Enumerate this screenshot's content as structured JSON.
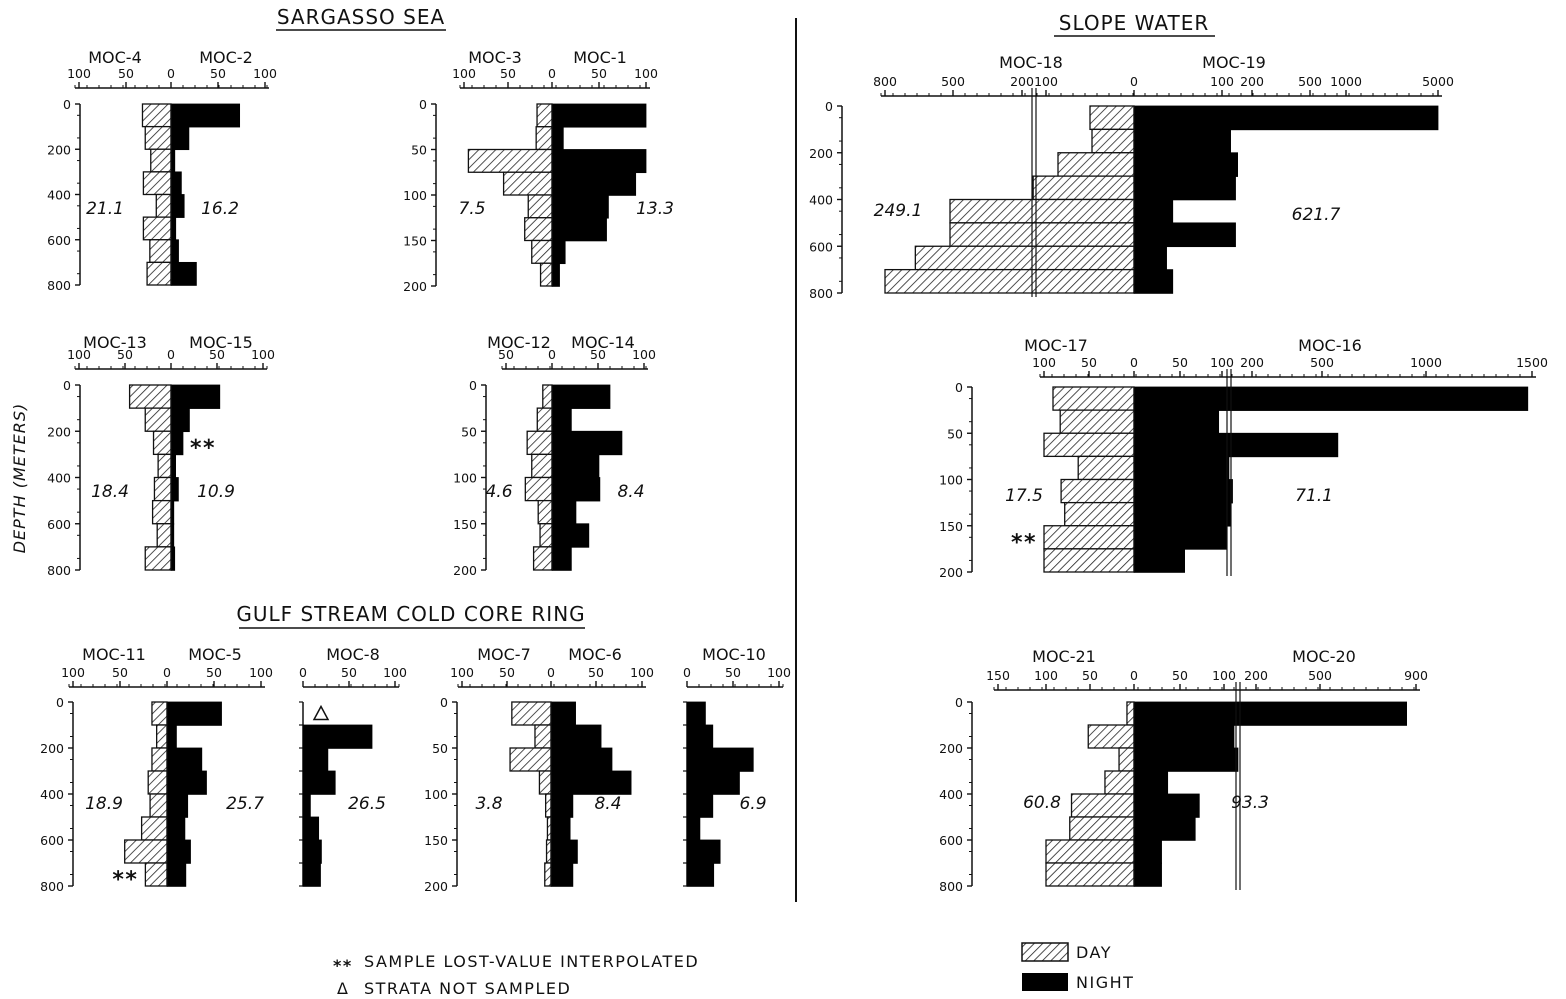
{
  "sections": {
    "sargasso": "SARGASSO SEA",
    "slope": "SLOPE WATER",
    "ring": "GULF STREAM COLD CORE RING"
  },
  "y_axis_label": "DEPTH (METERS)",
  "notes": {
    "lost": "SAMPLE LOST-VALUE INTERPOLATED",
    "lost_symbol": "**",
    "strata": "STRATA NOT SAMPLED",
    "strata_symbol": "Δ"
  },
  "legend": {
    "day": "DAY",
    "night": "NIGHT"
  },
  "colors": {
    "night": "#000000",
    "day_hatch": "#222222",
    "axis": "#111111"
  },
  "chart_data": [
    {
      "type": "bar",
      "orientation": "horizontal-paired",
      "section": "SARGASSO SEA",
      "day_label": "MOC-4",
      "night_label": "MOC-2",
      "day_ticks": [
        "100",
        "50",
        "0"
      ],
      "night_ticks": [
        "50",
        "100"
      ],
      "y_ticks": [
        "0",
        "200",
        "400",
        "600",
        "800"
      ],
      "depth_intervals": [
        "0-100",
        "100-200",
        "200-300",
        "300-400",
        "400-500",
        "500-600",
        "600-700",
        "700-800"
      ],
      "day_values": [
        31,
        28,
        22,
        30,
        16,
        30,
        23,
        26
      ],
      "night_values": [
        73,
        19,
        4,
        11,
        14,
        5,
        8,
        27
      ],
      "day_total": "21.1",
      "night_total": "16.2",
      "xlim": [
        -100,
        100
      ],
      "ylim": [
        0,
        800
      ]
    },
    {
      "type": "bar",
      "orientation": "horizontal-paired",
      "section": "SARGASSO SEA",
      "day_label": "MOC-3",
      "night_label": "MOC-1",
      "day_ticks": [
        "100",
        "50",
        "0"
      ],
      "night_ticks": [
        "50",
        "100"
      ],
      "y_ticks": [
        "0",
        "50",
        "100",
        "150",
        "200"
      ],
      "depth_intervals": [
        "0-25",
        "25-50",
        "50-75",
        "75-100",
        "100-125",
        "125-150",
        "150-175",
        "175-200"
      ],
      "day_values": [
        17,
        18,
        95,
        55,
        27,
        31,
        23,
        13
      ],
      "night_values": [
        101,
        12,
        117,
        89,
        60,
        58,
        14,
        8
      ],
      "day_total": "7.5",
      "night_total": "13.3",
      "xlim": [
        -100,
        100
      ],
      "ylim": [
        0,
        200
      ]
    },
    {
      "type": "bar",
      "orientation": "horizontal-paired",
      "section": "SARGASSO SEA",
      "day_label": "MOC-13",
      "night_label": "MOC-15",
      "day_ticks": [
        "100",
        "50",
        "0"
      ],
      "night_ticks": [
        "50",
        "100"
      ],
      "y_ticks": [
        "0",
        "200",
        "400",
        "600",
        "800"
      ],
      "depth_intervals": [
        "0-100",
        "100-200",
        "200-300",
        "300-400",
        "400-500",
        "500-600",
        "600-700",
        "700-800"
      ],
      "day_values": [
        45,
        28,
        19,
        14,
        18,
        20,
        15,
        28
      ],
      "night_values": [
        53,
        20,
        13,
        5,
        8,
        3,
        3,
        4
      ],
      "day_total": "18.4",
      "night_total": "10.9",
      "markers": [
        {
          "interval": "200-300",
          "side": "night",
          "symbol": "**"
        }
      ],
      "xlim": [
        -100,
        100
      ],
      "ylim": [
        0,
        800
      ]
    },
    {
      "type": "bar",
      "orientation": "horizontal-paired",
      "section": "SARGASSO SEA",
      "day_label": "MOC-12",
      "night_label": "MOC-14",
      "day_ticks": [
        "50",
        "0"
      ],
      "night_ticks": [
        "50",
        "100"
      ],
      "y_ticks": [
        "0",
        "50",
        "100",
        "150",
        "200"
      ],
      "depth_intervals": [
        "0-25",
        "25-50",
        "50-75",
        "75-100",
        "100-125",
        "125-150",
        "150-175",
        "175-200"
      ],
      "day_values": [
        10,
        16,
        27,
        22,
        29,
        15,
        13,
        20
      ],
      "night_values": [
        63,
        21,
        76,
        51,
        52,
        26,
        40,
        21
      ],
      "day_total": "4.6",
      "night_total": "8.4",
      "xlim": [
        -100,
        100
      ],
      "ylim": [
        0,
        200
      ]
    },
    {
      "type": "bar",
      "orientation": "horizontal-paired",
      "section": "SLOPE WATER",
      "day_label": "MOC-18",
      "night_label": "MOC-19",
      "day_ticks": [
        "800",
        "500",
        "200",
        "100",
        "0"
      ],
      "night_ticks": [
        "100",
        "200",
        "500",
        "1000",
        "5000"
      ],
      "y_ticks": [
        "0",
        "200",
        "400",
        "600",
        "800"
      ],
      "depth_intervals": [
        "0-100",
        "100-200",
        "200-300",
        "300-400",
        "400-500",
        "500-600",
        "600-700",
        "700-800"
      ],
      "day_values": [
        44,
        42,
        76,
        107,
        500,
        500,
        660,
        820
      ],
      "night_values": [
        5250,
        133,
        160,
        152,
        44,
        152,
        37,
        44
      ],
      "day_total": "249.1",
      "night_total": "621.7",
      "scale_break_at": 100,
      "xlim": [
        -800,
        5000
      ],
      "ylim": [
        0,
        800
      ]
    },
    {
      "type": "bar",
      "orientation": "horizontal-paired",
      "section": "SLOPE WATER",
      "day_label": "MOC-17",
      "night_label": "MOC-16",
      "day_ticks": [
        "100",
        "50",
        "0"
      ],
      "night_ticks": [
        "50",
        "100",
        "200",
        "500",
        "1000",
        "1500"
      ],
      "y_ticks": [
        "0",
        "50",
        "100",
        "150",
        "200"
      ],
      "depth_intervals": [
        "0-25",
        "25-50",
        "50-75",
        "75-100",
        "100-125",
        "125-150",
        "150-175",
        "175-200"
      ],
      "day_values": [
        90,
        82,
        112,
        62,
        81,
        77,
        126,
        117
      ],
      "night_values": [
        1480,
        92,
        576,
        129,
        165,
        143,
        105,
        55
      ],
      "day_total": "17.5",
      "night_total": "71.1",
      "markers": [
        {
          "interval": "150-175",
          "side": "day",
          "symbol": "**"
        }
      ],
      "scale_break_at": 100,
      "xlim": [
        -150,
        1500
      ],
      "ylim": [
        0,
        200
      ]
    },
    {
      "type": "bar",
      "orientation": "horizontal-paired",
      "section": "SLOPE WATER",
      "day_label": "MOC-21",
      "night_label": "MOC-20",
      "day_ticks": [
        "150",
        "100",
        "50",
        "0"
      ],
      "night_ticks": [
        "50",
        "100",
        "200",
        "500",
        "900"
      ],
      "y_ticks": [
        "0",
        "200",
        "400",
        "600",
        "800"
      ],
      "depth_intervals": [
        "0-100",
        "100-200",
        "200-300",
        "300-400",
        "400-500",
        "500-600",
        "600-700",
        "700-800"
      ],
      "day_values": [
        8,
        52,
        17,
        33,
        71,
        73,
        138,
        138
      ],
      "night_values": [
        860,
        98,
        114,
        33,
        64,
        60,
        27,
        27
      ],
      "day_total": "60.8",
      "night_total": "93.3",
      "scale_break_at": 100,
      "xlim": [
        -150,
        900
      ],
      "ylim": [
        0,
        800
      ]
    },
    {
      "type": "bar",
      "orientation": "horizontal-paired",
      "section": "GULF STREAM COLD CORE RING",
      "day_label": "MOC-11",
      "night_label": "MOC-5",
      "day_ticks": [
        "100",
        "50",
        "0"
      ],
      "night_ticks": [
        "50",
        "100"
      ],
      "y_ticks": [
        "0",
        "200",
        "400",
        "600",
        "800"
      ],
      "depth_intervals": [
        "0-100",
        "100-200",
        "200-300",
        "300-400",
        "400-500",
        "500-600",
        "600-700",
        "700-800"
      ],
      "day_values": [
        16,
        11,
        16,
        20,
        18,
        27,
        45,
        23
      ],
      "night_values": [
        58,
        10,
        37,
        42,
        22,
        19,
        25,
        20
      ],
      "day_total": "18.9",
      "night_total": "25.7",
      "markers": [
        {
          "interval": "700-800",
          "side": "day",
          "symbol": "**"
        }
      ],
      "xlim": [
        -100,
        100
      ],
      "ylim": [
        0,
        800
      ]
    },
    {
      "type": "bar",
      "orientation": "horizontal-single",
      "section": "GULF STREAM COLD CORE RING",
      "night_label": "MOC-8",
      "night_ticks": [
        "0",
        "50",
        "100"
      ],
      "y_ticks": [],
      "depth_intervals": [
        "0-100",
        "100-200",
        "200-300",
        "300-400",
        "400-500",
        "500-600",
        "600-700",
        "700-800"
      ],
      "night_values": [
        null,
        75,
        27,
        35,
        8,
        17,
        20,
        19
      ],
      "night_total": "26.5",
      "markers": [
        {
          "interval": "0-100",
          "side": "night",
          "symbol": "Δ"
        }
      ],
      "xlim": [
        0,
        100
      ],
      "ylim": [
        0,
        800
      ]
    },
    {
      "type": "bar",
      "orientation": "horizontal-paired",
      "section": "GULF STREAM COLD CORE RING",
      "day_label": "MOC-7",
      "night_label": "MOC-6",
      "day_ticks": [
        "100",
        "50",
        "0"
      ],
      "night_ticks": [
        "50",
        "100"
      ],
      "y_ticks": [
        "0",
        "50",
        "100",
        "150",
        "200"
      ],
      "depth_intervals": [
        "0-25",
        "25-50",
        "50-75",
        "75-100",
        "100-125",
        "125-150",
        "150-175",
        "175-200"
      ],
      "day_values": [
        44,
        18,
        46,
        13,
        6,
        4,
        5,
        7
      ],
      "night_values": [
        27,
        55,
        67,
        88,
        24,
        21,
        29,
        24
      ],
      "day_total": "3.8",
      "night_total": "8.4",
      "xlim": [
        -100,
        100
      ],
      "ylim": [
        0,
        200
      ]
    },
    {
      "type": "bar",
      "orientation": "horizontal-single",
      "section": "GULF STREAM COLD CORE RING",
      "night_label": "MOC-10",
      "night_ticks": [
        "0",
        "50",
        "100"
      ],
      "y_ticks": [],
      "depth_intervals": [
        "0-25",
        "25-50",
        "50-75",
        "75-100",
        "100-125",
        "125-150",
        "150-175",
        "175-200"
      ],
      "night_values": [
        20,
        28,
        72,
        57,
        28,
        14,
        36,
        29
      ],
      "night_total": "6.9",
      "xlim": [
        0,
        100
      ],
      "ylim": [
        0,
        200
      ]
    }
  ]
}
